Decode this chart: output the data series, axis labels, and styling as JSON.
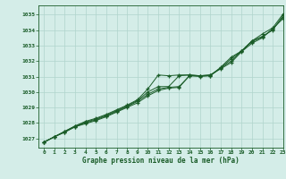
{
  "bg_color": "#d4ede8",
  "line_color": "#1a5c28",
  "grid_color": "#b0d4cc",
  "xlabel": "Graphe pression niveau de la mer (hPa)",
  "xlim": [
    -0.5,
    23
  ],
  "ylim": [
    1026.4,
    1035.6
  ],
  "yticks": [
    1027,
    1028,
    1029,
    1030,
    1031,
    1032,
    1033,
    1034,
    1035
  ],
  "xticks": [
    0,
    1,
    2,
    3,
    4,
    5,
    6,
    7,
    8,
    9,
    10,
    11,
    12,
    13,
    14,
    15,
    16,
    17,
    18,
    19,
    20,
    21,
    22,
    23
  ],
  "line1": [
    1026.75,
    1027.1,
    1027.45,
    1027.8,
    1028.1,
    1028.3,
    1028.55,
    1028.85,
    1029.15,
    1029.5,
    1030.2,
    1031.1,
    1031.05,
    1031.1,
    1031.1,
    1031.05,
    1031.1,
    1031.5,
    1031.9,
    1032.6,
    1033.15,
    1033.5,
    1034.1,
    1034.75
  ],
  "line2": [
    1026.75,
    1027.1,
    1027.45,
    1027.8,
    1028.05,
    1028.25,
    1028.5,
    1028.8,
    1029.1,
    1029.45,
    1030.0,
    1030.35,
    1030.35,
    1031.05,
    1031.1,
    1031.05,
    1031.05,
    1031.55,
    1032.0,
    1032.65,
    1033.25,
    1033.55,
    1034.05,
    1034.85
  ],
  "line3": [
    1026.75,
    1027.1,
    1027.4,
    1027.75,
    1028.0,
    1028.2,
    1028.45,
    1028.75,
    1029.05,
    1029.4,
    1029.85,
    1030.2,
    1030.3,
    1030.35,
    1031.05,
    1031.05,
    1031.1,
    1031.55,
    1032.15,
    1032.65,
    1033.3,
    1033.6,
    1034.0,
    1034.95
  ],
  "line4": [
    1026.75,
    1027.1,
    1027.4,
    1027.75,
    1027.95,
    1028.15,
    1028.4,
    1028.7,
    1029.0,
    1029.3,
    1029.75,
    1030.1,
    1030.25,
    1030.3,
    1031.05,
    1031.0,
    1031.05,
    1031.6,
    1032.25,
    1032.65,
    1033.3,
    1033.75,
    1034.15,
    1035.05
  ]
}
